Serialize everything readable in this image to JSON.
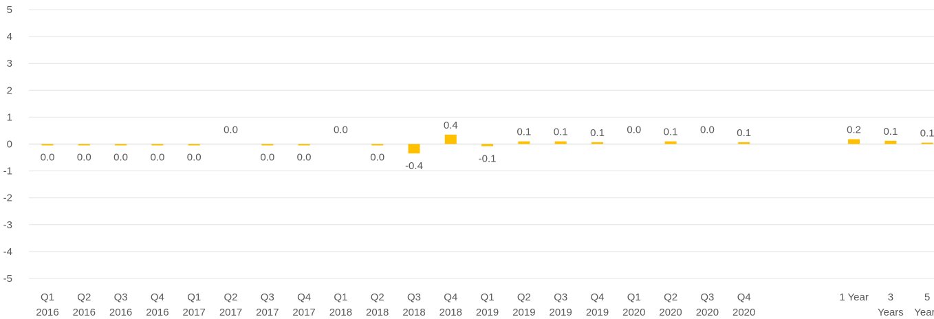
{
  "chart_data": {
    "type": "bar",
    "title": "",
    "xlabel": "",
    "ylabel": "",
    "ylim": [
      -5,
      5
    ],
    "yticks": [
      5,
      4,
      3,
      2,
      1,
      0,
      -1,
      -2,
      -3,
      -4,
      -5
    ],
    "grid": true,
    "legend": "none",
    "bar_color": "#FFC000",
    "categories": [
      {
        "line1": "Q1",
        "line2": "2016"
      },
      {
        "line1": "Q2",
        "line2": "2016"
      },
      {
        "line1": "Q3",
        "line2": "2016"
      },
      {
        "line1": "Q4",
        "line2": "2016"
      },
      {
        "line1": "Q1",
        "line2": "2017"
      },
      {
        "line1": "Q2",
        "line2": "2017"
      },
      {
        "line1": "Q3",
        "line2": "2017"
      },
      {
        "line1": "Q4",
        "line2": "2017"
      },
      {
        "line1": "Q1",
        "line2": "2018"
      },
      {
        "line1": "Q2",
        "line2": "2018"
      },
      {
        "line1": "Q3",
        "line2": "2018"
      },
      {
        "line1": "Q4",
        "line2": "2018"
      },
      {
        "line1": "Q1",
        "line2": "2019"
      },
      {
        "line1": "Q2",
        "line2": "2019"
      },
      {
        "line1": "Q3",
        "line2": "2019"
      },
      {
        "line1": "Q4",
        "line2": "2019"
      },
      {
        "line1": "Q1",
        "line2": "2020"
      },
      {
        "line1": "Q2",
        "line2": "2020"
      },
      {
        "line1": "Q3",
        "line2": "2020"
      },
      {
        "line1": "Q4",
        "line2": "2020"
      },
      {
        "line1": "",
        "line2": ""
      },
      {
        "line1": "",
        "line2": ""
      },
      {
        "line1": "1 Year",
        "line2": ""
      },
      {
        "line1": "3",
        "line2": "Years"
      },
      {
        "line1": "5",
        "line2": "Years"
      }
    ],
    "values": [
      -0.02,
      -0.02,
      -0.02,
      -0.02,
      -0.02,
      0.0,
      -0.02,
      -0.02,
      0.0,
      -0.02,
      -0.35,
      0.35,
      -0.08,
      0.1,
      0.1,
      0.07,
      0.0,
      0.1,
      0.0,
      0.07,
      null,
      null,
      0.18,
      0.12,
      0.05
    ],
    "data_labels": [
      "0.0",
      "0.0",
      "0.0",
      "0.0",
      "0.0",
      "0.0",
      "0.0",
      "0.0",
      "0.0",
      "0.0",
      "-0.4",
      "0.4",
      "-0.1",
      "0.1",
      "0.1",
      "0.1",
      "0.0",
      "0.1",
      "0.0",
      "0.1",
      "",
      "",
      "0.2",
      "0.1",
      "0.1"
    ]
  }
}
